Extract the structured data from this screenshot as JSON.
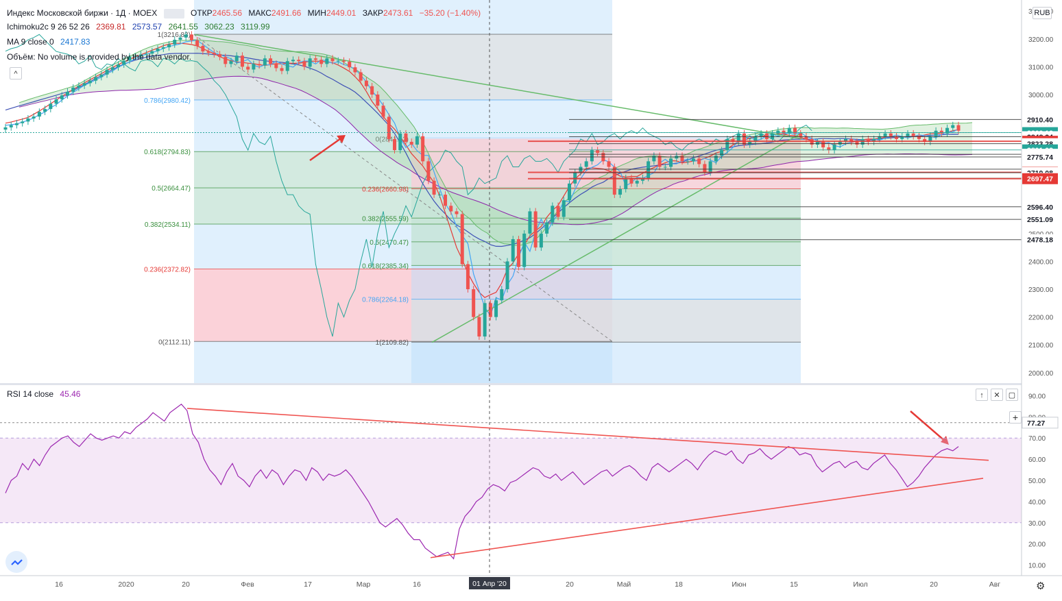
{
  "header": {
    "symbol": "Индекс Московской биржи · 1Д · MOEX",
    "open_label": "ОТКР",
    "open": "2465.56",
    "high_label": "МАКС",
    "high": "2491.66",
    "low_label": "МИН",
    "low": "2449.01",
    "close_label": "ЗАКР",
    "close": "2473.61",
    "change": "−35.20 (−1.40%)"
  },
  "indicators": {
    "ichimoku_label": "Ichimoku2c 9 26 52 26",
    "ichimoku_values": [
      "2369.81",
      "2573.57",
      "2641.55",
      "3062.23",
      "3119.99"
    ],
    "ma_label": "MA 9 close 0",
    "ma_value": "2417.83",
    "volume_note": "Объём: No volume is provided by the data vendor.",
    "rsi_label": "RSI 14 close",
    "rsi_value": "45.46"
  },
  "currency": "RUB",
  "colors": {
    "up": "#26a69a",
    "down": "#ef5350",
    "tenkan": "#2962ff",
    "kijun": "#ef5350",
    "rsi": "#9c27b0",
    "fib_green": "#4caf50",
    "lagging": "#26a69a"
  },
  "chart_data": [
    {
      "type": "candlestick",
      "title": "Индекс Московской биржи · 1Д · MOEX",
      "ylim": [
        1960,
        3340
      ],
      "y_ticks": [
        2000,
        2100,
        2200,
        2300,
        2400,
        2500,
        2600,
        2700,
        2800,
        2900,
        3000,
        3100,
        3200,
        3300
      ],
      "y_tick_labels": [
        "2000.00",
        "2100.00",
        "2200.00",
        "2300.00",
        "2400.00",
        "2500.00",
        "2600.00",
        "2700.00",
        "2800.00",
        "2900.00",
        "3000.00",
        "3100.00",
        "3200.00",
        "3300.00"
      ],
      "x_ticks": [
        "16",
        "2020",
        "20",
        "Фев",
        "17",
        "Мар",
        "16",
        "01 Апр '20",
        "20",
        "Май",
        "18",
        "Июн",
        "15",
        "Июл",
        "20",
        "Авг"
      ],
      "price_markers": [
        {
          "label": "2910.40",
          "value": 2910.4,
          "style": "dark"
        },
        {
          "label": "2863.12",
          "value": 2863.12,
          "style": "teal"
        },
        {
          "label": "2848.34",
          "value": 2848.34,
          "style": "plain"
        },
        {
          "label": "2831.98",
          "value": 2831.98,
          "style": "red"
        },
        {
          "label": "2823.28",
          "value": 2823.28,
          "style": "plain"
        },
        {
          "label": "2801.02",
          "value": 2801.02,
          "style": "teal"
        },
        {
          "label": "2785.12",
          "value": 2785.12,
          "style": "plain"
        },
        {
          "label": "2775.74",
          "value": 2775.74,
          "style": "plain"
        },
        {
          "label": "2731.67",
          "value": 2731.67,
          "style": "plain"
        },
        {
          "label": "2720.27",
          "value": 2720.27,
          "style": "red"
        },
        {
          "label": "2719.08",
          "value": 2719.08,
          "style": "plain"
        },
        {
          "label": "2698.95",
          "value": 2698.95,
          "style": "plain"
        },
        {
          "label": "2697.47",
          "value": 2697.47,
          "style": "red"
        },
        {
          "label": "2596.40",
          "value": 2596.4,
          "style": "plain"
        },
        {
          "label": "2551.09",
          "value": 2551.09,
          "style": "plain"
        },
        {
          "label": "2478.18",
          "value": 2478.18,
          "style": "plain"
        }
      ],
      "fib_labels_left": [
        {
          "label": "1(3216.83)",
          "value": 3216.83,
          "color": "#555"
        },
        {
          "label": "0.786(2980.42)",
          "value": 2980.42,
          "color": "#42a5f5"
        },
        {
          "label": "0.618(2794.83)",
          "value": 2794.83,
          "color": "#388e3c"
        },
        {
          "label": "0.5(2664.47)",
          "value": 2664.47,
          "color": "#388e3c"
        },
        {
          "label": "0.382(2534.11)",
          "value": 2534.11,
          "color": "#388e3c"
        },
        {
          "label": "0.236(2372.82)",
          "value": 2372.82,
          "color": "#e53935"
        },
        {
          "label": "0(2112.11)",
          "value": 2112.11,
          "color": "#555"
        }
      ],
      "fib_labels_mid": [
        {
          "label": "0.236(2660.98)",
          "value": 2660.98,
          "color": "#e53935"
        },
        {
          "label": "0.382(2555.59)",
          "value": 2555.59,
          "color": "#388e3c"
        },
        {
          "label": "0.5(2470.47)",
          "value": 2470.47,
          "color": "#388e3c"
        },
        {
          "label": "0.618(2385.34)",
          "value": 2385.34,
          "color": "#388e3c"
        },
        {
          "label": "0.786(2264.18)",
          "value": 2264.18,
          "color": "#42a5f5"
        },
        {
          "label": "1(2109.82)",
          "value": 2109.82,
          "color": "#555"
        }
      ],
      "fib_label_mid_top": {
        "label": "0(2841.12)",
        "value": 2841.12
      },
      "closes": [
        2882,
        2890,
        2897,
        2903,
        2914,
        2921,
        2938,
        2948,
        2967,
        2983,
        2997,
        3010,
        3025,
        3032,
        3041,
        3050,
        3063,
        3072,
        3089,
        3098,
        3108,
        3122,
        3137,
        3138,
        3144,
        3147,
        3156,
        3165,
        3170,
        3180,
        3197,
        3205,
        3216,
        3195,
        3175,
        3155,
        3150,
        3145,
        3135,
        3110,
        3120,
        3140,
        3100,
        3090,
        3110,
        3105,
        3130,
        3110,
        3095,
        3085,
        3120,
        3125,
        3120,
        3100,
        3130,
        3125,
        3110,
        3130,
        3120,
        3122,
        3118,
        3098,
        3080,
        3050,
        3030,
        3000,
        2960,
        2920,
        2840,
        2800,
        2860,
        2830,
        2820,
        2850,
        2760,
        2690,
        2640,
        2640,
        2600,
        2580,
        2570,
        2390,
        2300,
        2200,
        2130,
        2250,
        2200,
        2260,
        2300,
        2400,
        2480,
        2380,
        2500,
        2580,
        2450,
        2500,
        2540,
        2600,
        2560,
        2620,
        2680,
        2720,
        2740,
        2760,
        2800,
        2790,
        2760,
        2740,
        2640,
        2660,
        2700,
        2680,
        2690,
        2700,
        2760,
        2780,
        2740,
        2740,
        2770,
        2780,
        2760,
        2760,
        2770,
        2750,
        2720,
        2760,
        2780,
        2800,
        2840,
        2830,
        2860,
        2820,
        2830,
        2850,
        2860,
        2840,
        2860,
        2870,
        2860,
        2880,
        2860,
        2850,
        2840,
        2820,
        2830,
        2810,
        2800,
        2820,
        2830,
        2840,
        2830,
        2820,
        2840,
        2830,
        2840,
        2850,
        2860,
        2850,
        2840,
        2850,
        2860,
        2850,
        2840,
        2830,
        2850,
        2870,
        2860,
        2880,
        2890,
        2870
      ]
    },
    {
      "type": "line",
      "title": "RSI 14 close",
      "ylim": [
        5,
        95
      ],
      "y_ticks": [
        10,
        20,
        30,
        40,
        50,
        60,
        70,
        80,
        90
      ],
      "y_tick_labels": [
        "10.00",
        "20.00",
        "30.00",
        "40.00",
        "50.00",
        "60.00",
        "70.00",
        "80.00",
        "90.00"
      ],
      "marker": {
        "label": "77.27",
        "value": 77.27
      },
      "values": [
        44,
        50,
        52,
        58,
        55,
        60,
        57,
        62,
        66,
        68,
        70,
        71,
        68,
        66,
        69,
        72,
        70,
        69,
        70,
        71,
        70,
        73,
        72,
        75,
        77,
        79,
        82,
        80,
        78,
        82,
        84,
        86,
        83,
        72,
        68,
        60,
        55,
        52,
        48,
        54,
        58,
        52,
        50,
        47,
        52,
        55,
        51,
        55,
        53,
        48,
        52,
        55,
        54,
        50,
        56,
        54,
        50,
        53,
        52,
        53,
        55,
        52,
        48,
        44,
        40,
        35,
        30,
        28,
        30,
        32,
        29,
        25,
        22,
        22,
        18,
        16,
        14,
        15,
        16,
        13,
        27,
        33,
        36,
        40,
        42,
        46,
        48,
        47,
        45,
        49,
        50,
        52,
        54,
        56,
        55,
        52,
        51,
        53,
        50,
        52,
        54,
        51,
        48,
        50,
        52,
        54,
        55,
        52,
        54,
        56,
        57,
        55,
        52,
        50,
        56,
        58,
        56,
        54,
        56,
        58,
        60,
        58,
        55,
        59,
        62,
        64,
        63,
        62,
        64,
        60,
        58,
        62,
        63,
        65,
        62,
        60,
        62,
        64,
        66,
        65,
        62,
        63,
        62,
        57,
        54,
        56,
        58,
        59,
        56,
        58,
        59,
        56,
        55,
        58,
        60,
        62,
        58,
        55,
        51,
        47,
        49,
        52,
        56,
        59,
        62,
        64,
        65,
        64,
        66
      ]
    }
  ]
}
